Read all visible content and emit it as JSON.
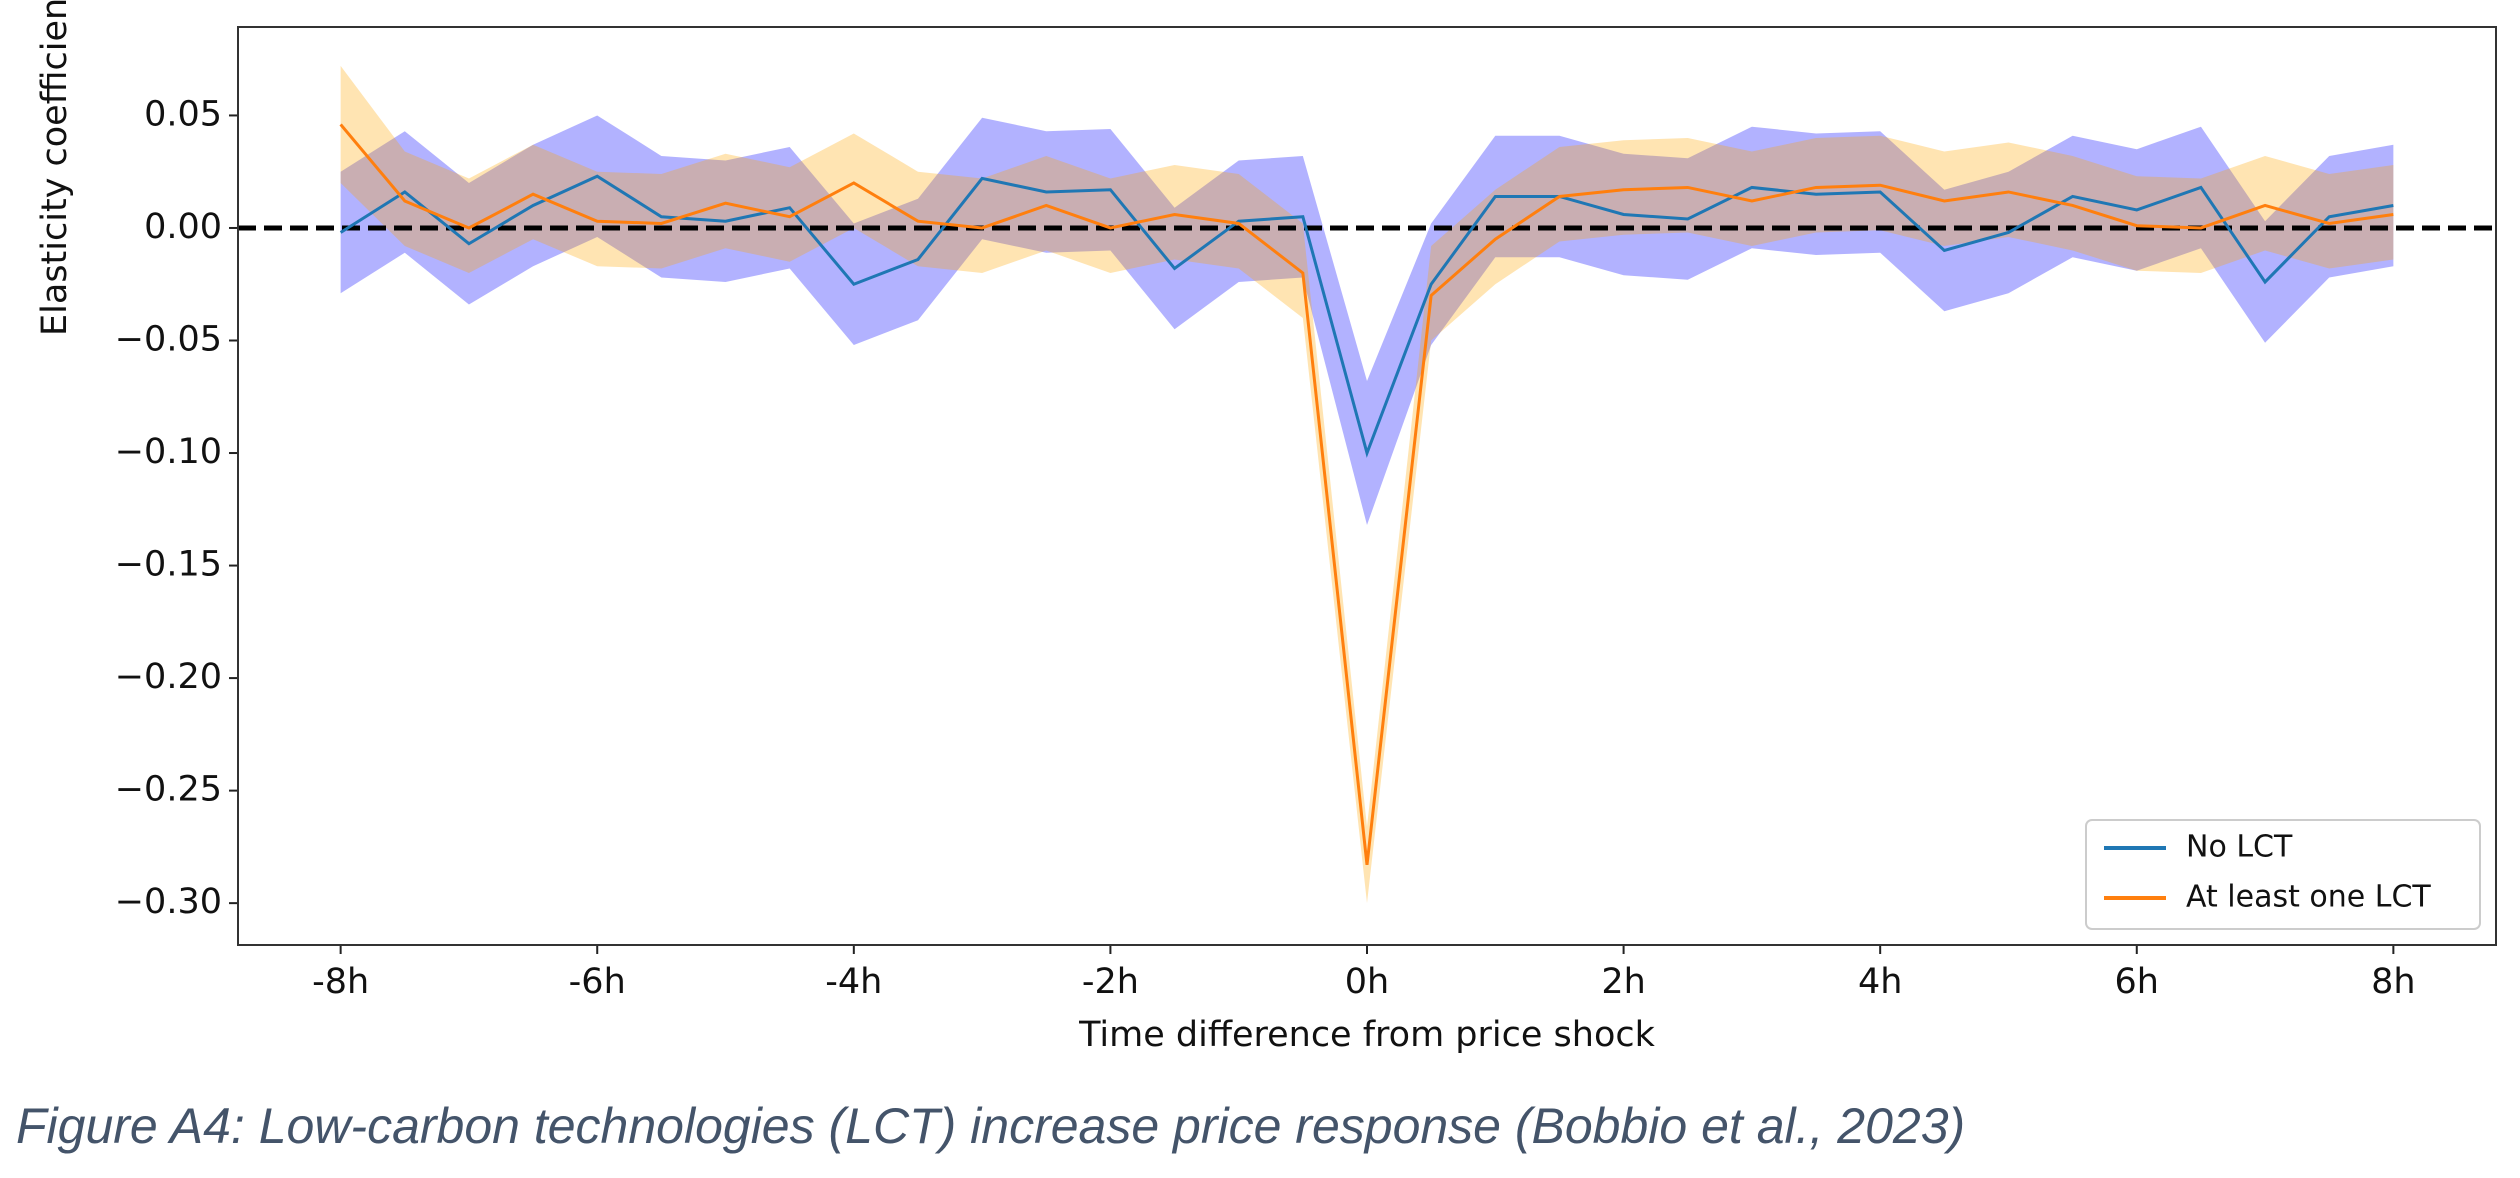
{
  "chart_data": {
    "type": "line",
    "x_label": "Time difference from price shock",
    "y_label": "Elasticity coefficient",
    "x": [
      -8,
      -7.5,
      -7,
      -6.5,
      -6,
      -5.5,
      -5,
      -4.5,
      -4,
      -3.5,
      -3,
      -2.5,
      -2,
      -1.5,
      -1,
      -0.5,
      0,
      0.5,
      1,
      1.5,
      2,
      2.5,
      3,
      3.5,
      4,
      4.5,
      5,
      5.5,
      6,
      6.5,
      7,
      7.5,
      8
    ],
    "xlim": [
      -8.8,
      8.8
    ],
    "xticks": [
      {
        "value": -8,
        "label": "-8h"
      },
      {
        "value": -6,
        "label": "-6h"
      },
      {
        "value": -4,
        "label": "-4h"
      },
      {
        "value": -2,
        "label": "-2h"
      },
      {
        "value": 0,
        "label": "0h"
      },
      {
        "value": 2,
        "label": "2h"
      },
      {
        "value": 4,
        "label": "4h"
      },
      {
        "value": 6,
        "label": "6h"
      },
      {
        "value": 8,
        "label": "8h"
      }
    ],
    "ylim": [
      -0.3186,
      0.0893
    ],
    "yticks": [
      {
        "value": 0.05,
        "label": "0.05"
      },
      {
        "value": 0,
        "label": "0.00"
      },
      {
        "value": -0.05,
        "label": "−0.05"
      },
      {
        "value": -0.1,
        "label": "−0.10"
      },
      {
        "value": -0.15,
        "label": "−0.15"
      },
      {
        "value": -0.2,
        "label": "−0.20"
      },
      {
        "value": -0.25,
        "label": "−0.25"
      },
      {
        "value": -0.3,
        "label": "−0.30"
      }
    ],
    "reference_line": 0,
    "legend": "lower right",
    "series": [
      {
        "name": "No LCT",
        "color": "#1f77b4",
        "band_color": "#0000ff",
        "values": [
          -0.002,
          0.016,
          -0.007,
          0.01,
          0.023,
          0.005,
          0.003,
          0.009,
          -0.025,
          -0.014,
          0.022,
          0.016,
          0.017,
          -0.018,
          0.003,
          0.005,
          -0.1,
          -0.025,
          0.014,
          0.014,
          0.006,
          0.004,
          0.018,
          0.015,
          0.016,
          -0.01,
          -0.002,
          0.014,
          0.008,
          0.018,
          -0.024,
          0.005,
          0.01
        ],
        "lower": [
          -0.029,
          -0.011,
          -0.034,
          -0.017,
          -0.004,
          -0.022,
          -0.024,
          -0.018,
          -0.052,
          -0.041,
          -0.005,
          -0.011,
          -0.01,
          -0.045,
          -0.024,
          -0.022,
          -0.132,
          -0.052,
          -0.013,
          -0.013,
          -0.021,
          -0.023,
          -0.009,
          -0.012,
          -0.011,
          -0.037,
          -0.029,
          -0.013,
          -0.019,
          -0.009,
          -0.051,
          -0.022,
          -0.017
        ],
        "upper": [
          0.025,
          0.043,
          0.02,
          0.037,
          0.05,
          0.032,
          0.03,
          0.036,
          0.002,
          0.013,
          0.049,
          0.043,
          0.044,
          0.009,
          0.03,
          0.032,
          -0.068,
          0.002,
          0.041,
          0.041,
          0.033,
          0.031,
          0.045,
          0.042,
          0.043,
          0.017,
          0.025,
          0.041,
          0.035,
          0.045,
          0.003,
          0.032,
          0.037
        ]
      },
      {
        "name": "At least one LCT",
        "color": "#ff7f0e",
        "band_color": "#ffa500",
        "values": [
          0.046,
          0.012,
          0.0,
          0.015,
          0.003,
          0.002,
          0.011,
          0.005,
          0.02,
          0.003,
          0.0,
          0.01,
          0.0,
          0.006,
          0.002,
          -0.02,
          -0.283,
          -0.03,
          -0.005,
          0.014,
          0.017,
          0.018,
          0.012,
          0.018,
          0.019,
          0.012,
          0.016,
          0.01,
          0.001,
          0.0,
          0.01,
          0.002,
          0.006
        ],
        "lower": [
          0.02,
          -0.008,
          -0.02,
          -0.005,
          -0.017,
          -0.018,
          -0.009,
          -0.015,
          0.0,
          -0.017,
          -0.02,
          -0.01,
          -0.02,
          -0.014,
          -0.018,
          -0.04,
          -0.3,
          -0.05,
          -0.025,
          -0.006,
          -0.003,
          -0.002,
          -0.008,
          -0.002,
          -0.001,
          -0.008,
          -0.004,
          -0.01,
          -0.019,
          -0.02,
          -0.01,
          -0.018,
          -0.014
        ],
        "upper": [
          0.072,
          0.034,
          0.022,
          0.037,
          0.025,
          0.024,
          0.033,
          0.027,
          0.042,
          0.025,
          0.022,
          0.032,
          0.022,
          0.028,
          0.024,
          0.002,
          -0.266,
          -0.008,
          0.017,
          0.036,
          0.039,
          0.04,
          0.034,
          0.04,
          0.041,
          0.034,
          0.038,
          0.032,
          0.023,
          0.022,
          0.032,
          0.024,
          0.028
        ]
      }
    ]
  },
  "caption": "Figure A4: Low-carbon technologies (LCT) increase price response (Bobbio et al., 2023)"
}
